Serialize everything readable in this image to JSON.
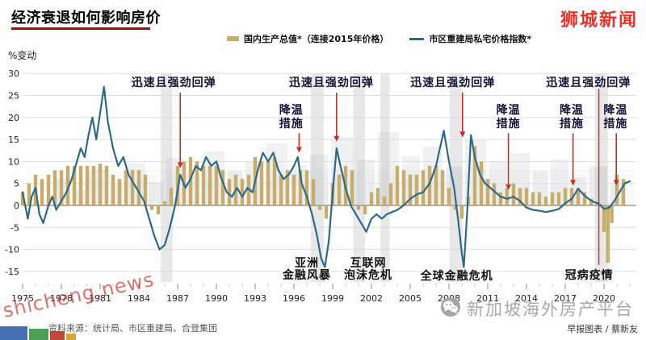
{
  "header": {
    "title": "经济衰退如何影响房价",
    "logo": "狮城新闻",
    "legend": [
      {
        "label": "国内生产总值*（连接2015年价格）",
        "swatch": "bar",
        "color": "#c8ad6a"
      },
      {
        "label": "市区重建局私宅价格指数*",
        "swatch": "line",
        "color": "#2e6988"
      }
    ]
  },
  "chart_data": {
    "type": "combo",
    "title": "经济衰退如何影响房价",
    "ylabel": "%变动",
    "ylim": [
      -15,
      30
    ],
    "yticks": [
      30,
      25,
      20,
      15,
      10,
      5,
      0,
      -5,
      -10,
      -15
    ],
    "xticks": [
      1975,
      1978,
      1981,
      1984,
      1987,
      1990,
      1993,
      1996,
      1999,
      2002,
      2005,
      2008,
      2011,
      2014,
      2017,
      2020
    ],
    "xlim": [
      1975,
      2022.5
    ],
    "grid": true,
    "legend_position": "top",
    "series": [
      {
        "name": "国内生产总值*（连接2015年价格）",
        "type": "bar",
        "color": "#c8ad6a",
        "points": [
          [
            1975,
            3
          ],
          [
            1975.5,
            5
          ],
          [
            1976,
            7
          ],
          [
            1976.5,
            6
          ],
          [
            1977,
            7
          ],
          [
            1977.5,
            8
          ],
          [
            1978,
            8
          ],
          [
            1978.5,
            9
          ],
          [
            1979,
            9
          ],
          [
            1979.5,
            9
          ],
          [
            1980,
            9
          ],
          [
            1980.5,
            9
          ],
          [
            1981,
            9.5
          ],
          [
            1981.5,
            9
          ],
          [
            1982,
            7
          ],
          [
            1982.5,
            6
          ],
          [
            1983,
            8
          ],
          [
            1983.5,
            8
          ],
          [
            1984,
            8
          ],
          [
            1984.5,
            7
          ],
          [
            1985,
            -1
          ],
          [
            1985.5,
            -2
          ],
          [
            1986,
            1
          ],
          [
            1986.5,
            4
          ],
          [
            1987,
            9
          ],
          [
            1987.5,
            10
          ],
          [
            1988,
            11
          ],
          [
            1988.5,
            10
          ],
          [
            1989,
            9
          ],
          [
            1989.5,
            9
          ],
          [
            1990,
            9
          ],
          [
            1990.5,
            8
          ],
          [
            1991,
            6
          ],
          [
            1991.5,
            7
          ],
          [
            1992,
            6
          ],
          [
            1992.5,
            7
          ],
          [
            1993,
            11
          ],
          [
            1993.5,
            10
          ],
          [
            1994,
            10
          ],
          [
            1994.5,
            11
          ],
          [
            1995,
            7
          ],
          [
            1995.5,
            8
          ],
          [
            1996,
            7
          ],
          [
            1996.5,
            8
          ],
          [
            1997,
            8
          ],
          [
            1997.5,
            6
          ],
          [
            1998,
            -1
          ],
          [
            1998.5,
            -3
          ],
          [
            1999,
            5
          ],
          [
            1999.5,
            7
          ],
          [
            2000,
            9
          ],
          [
            2000.5,
            8
          ],
          [
            2001,
            -1
          ],
          [
            2001.5,
            -2
          ],
          [
            2002,
            3
          ],
          [
            2002.5,
            4
          ],
          [
            2003,
            2
          ],
          [
            2003.5,
            5
          ],
          [
            2004,
            9
          ],
          [
            2004.5,
            8
          ],
          [
            2005,
            7
          ],
          [
            2005.5,
            7
          ],
          [
            2006,
            8
          ],
          [
            2006.5,
            9
          ],
          [
            2007,
            9
          ],
          [
            2007.5,
            8
          ],
          [
            2008,
            4
          ],
          [
            2008.5,
            -1
          ],
          [
            2009,
            -3
          ],
          [
            2009.5,
            2
          ],
          [
            2010,
            13.5
          ],
          [
            2010.5,
            10
          ],
          [
            2011,
            6
          ],
          [
            2011.5,
            5
          ],
          [
            2012,
            3
          ],
          [
            2012.5,
            4
          ],
          [
            2013,
            5
          ],
          [
            2013.5,
            4
          ],
          [
            2014,
            4
          ],
          [
            2014.5,
            3
          ],
          [
            2015,
            3
          ],
          [
            2015.5,
            2
          ],
          [
            2016,
            3
          ],
          [
            2016.5,
            3
          ],
          [
            2017,
            4
          ],
          [
            2017.5,
            4
          ],
          [
            2018,
            4
          ],
          [
            2018.5,
            3
          ],
          [
            2019,
            1.5
          ],
          [
            2019.5,
            0.8
          ],
          [
            2020,
            -6
          ],
          [
            2020.3,
            -13
          ],
          [
            2020.6,
            -4
          ],
          [
            2021,
            7
          ],
          [
            2021.5,
            6
          ]
        ]
      },
      {
        "name": "市区重建局私宅价格指数*",
        "type": "line",
        "color": "#2e6988",
        "points": [
          [
            1975,
            3
          ],
          [
            1975.2,
            0
          ],
          [
            1975.4,
            -3
          ],
          [
            1975.7,
            2
          ],
          [
            1976,
            4
          ],
          [
            1976.3,
            -2
          ],
          [
            1976.6,
            -4
          ],
          [
            1977,
            0
          ],
          [
            1977.3,
            2
          ],
          [
            1977.6,
            -1
          ],
          [
            1978,
            1
          ],
          [
            1978.4,
            3
          ],
          [
            1978.8,
            6
          ],
          [
            1979.2,
            10
          ],
          [
            1979.5,
            13
          ],
          [
            1979.8,
            11
          ],
          [
            1980.1,
            16
          ],
          [
            1980.4,
            20
          ],
          [
            1980.7,
            15
          ],
          [
            1981,
            21
          ],
          [
            1981.3,
            27
          ],
          [
            1981.6,
            19
          ],
          [
            1982,
            13
          ],
          [
            1982.4,
            9
          ],
          [
            1982.8,
            11
          ],
          [
            1983.2,
            7
          ],
          [
            1983.6,
            5
          ],
          [
            1984,
            3
          ],
          [
            1984.4,
            1
          ],
          [
            1984.8,
            -3
          ],
          [
            1985.2,
            -7
          ],
          [
            1985.6,
            -10
          ],
          [
            1986,
            -9
          ],
          [
            1986.4,
            -5
          ],
          [
            1986.8,
            0
          ],
          [
            1987.2,
            7
          ],
          [
            1987.6,
            4
          ],
          [
            1988,
            6
          ],
          [
            1988.4,
            9
          ],
          [
            1988.8,
            8
          ],
          [
            1989.2,
            11
          ],
          [
            1989.6,
            9
          ],
          [
            1990,
            10
          ],
          [
            1990.4,
            6
          ],
          [
            1990.8,
            3
          ],
          [
            1991.2,
            2
          ],
          [
            1991.6,
            4
          ],
          [
            1992,
            2
          ],
          [
            1992.4,
            4
          ],
          [
            1992.8,
            3
          ],
          [
            1993.2,
            8
          ],
          [
            1993.6,
            12
          ],
          [
            1994,
            10
          ],
          [
            1994.4,
            12
          ],
          [
            1994.8,
            8
          ],
          [
            1995.2,
            6
          ],
          [
            1995.6,
            7
          ],
          [
            1996,
            9
          ],
          [
            1996.3,
            11
          ],
          [
            1996.6,
            5
          ],
          [
            1997,
            2
          ],
          [
            1997.4,
            -2
          ],
          [
            1997.8,
            -7
          ],
          [
            1998.1,
            -12
          ],
          [
            1998.4,
            -14
          ],
          [
            1998.7,
            -8
          ],
          [
            1999,
            3
          ],
          [
            1999.3,
            13
          ],
          [
            1999.6,
            9
          ],
          [
            2000,
            4
          ],
          [
            2000.4,
            0
          ],
          [
            2000.8,
            -2
          ],
          [
            2001.2,
            -4
          ],
          [
            2001.6,
            -6
          ],
          [
            2002,
            -3
          ],
          [
            2002.4,
            -2
          ],
          [
            2002.8,
            -3
          ],
          [
            2003.2,
            -2
          ],
          [
            2003.6,
            -1.5
          ],
          [
            2004,
            -1
          ],
          [
            2004.5,
            0
          ],
          [
            2005,
            1.5
          ],
          [
            2005.5,
            2.5
          ],
          [
            2006,
            3
          ],
          [
            2006.5,
            5
          ],
          [
            2007,
            9
          ],
          [
            2007.3,
            13
          ],
          [
            2007.6,
            17
          ],
          [
            2008,
            10
          ],
          [
            2008.4,
            4
          ],
          [
            2008.7,
            -3
          ],
          [
            2009,
            -11
          ],
          [
            2009.15,
            -14
          ],
          [
            2009.4,
            -2
          ],
          [
            2009.7,
            16
          ],
          [
            2010,
            11
          ],
          [
            2010.4,
            7
          ],
          [
            2010.8,
            5
          ],
          [
            2011.2,
            4
          ],
          [
            2011.6,
            3
          ],
          [
            2012,
            2
          ],
          [
            2012.5,
            1.5
          ],
          [
            2013,
            2
          ],
          [
            2013.5,
            1
          ],
          [
            2014,
            -0.5
          ],
          [
            2014.5,
            -1
          ],
          [
            2015,
            -1.2
          ],
          [
            2015.5,
            -1.5
          ],
          [
            2016,
            -1.2
          ],
          [
            2016.5,
            -0.8
          ],
          [
            2017,
            0.5
          ],
          [
            2017.5,
            1.5
          ],
          [
            2018,
            3.8
          ],
          [
            2018.4,
            2.5
          ],
          [
            2018.8,
            1.5
          ],
          [
            2019.2,
            0.8
          ],
          [
            2019.6,
            0.4
          ],
          [
            2020,
            -0.8
          ],
          [
            2020.4,
            -0.5
          ],
          [
            2020.8,
            1
          ],
          [
            2021.2,
            3
          ],
          [
            2021.6,
            5
          ],
          [
            2022,
            5.5
          ]
        ]
      }
    ],
    "recession_bands": [
      [
        1985.7,
        1986.6
      ],
      [
        1997.3,
        1998.3
      ],
      [
        2000.6,
        2001.5
      ],
      [
        2002.7,
        2003.4
      ],
      [
        2008.05,
        2009.05
      ],
      [
        2019.3,
        2020.3
      ]
    ],
    "covid_line": {
      "year": 2019.6,
      "from": 26.5,
      "to": -13.5,
      "color": "#c43026"
    },
    "annotations": [
      {
        "text": "迅速且强劲回弹",
        "year": 1986.7,
        "top_value": 29.3,
        "arrow": {
          "year": 1987.2,
          "to": 8.5
        }
      },
      {
        "text": "降温\n措施",
        "year": 1995.8,
        "top_value": 23.0,
        "arrow": {
          "year": 1996.4,
          "to": 12
        }
      },
      {
        "text": "迅速且强劲回弹",
        "year": 1998.9,
        "top_value": 29.3,
        "arrow": {
          "year": 1999.3,
          "to": 14.5
        }
      },
      {
        "text": "迅速且强劲回弹",
        "year": 2008.3,
        "top_value": 29.3,
        "arrow": {
          "year": 2009.05,
          "to": 15.5
        }
      },
      {
        "text": "降温\n措施",
        "year": 2012.6,
        "top_value": 23.0,
        "arrow": {
          "year": 2012.6,
          "to": 3.5
        }
      },
      {
        "text": "降温\n措施",
        "year": 2017.5,
        "top_value": 23.0,
        "arrow": {
          "year": 2017.6,
          "to": 4.5
        }
      },
      {
        "text": "迅速且强劲回弹",
        "year": 2018.8,
        "top_value": 29.3,
        "arrow": null
      },
      {
        "text": "降温\n措施",
        "year": 2020.9,
        "top_value": 23.0,
        "arrow": {
          "year": 2020.95,
          "to": 4.5
        }
      }
    ],
    "event_labels": [
      {
        "text": "亚洲\n金融风暴",
        "year": 1997.0,
        "top_value": -11.9
      },
      {
        "text": "互联网\n泡沫危机",
        "year": 2001.75,
        "top_value": -11.9
      },
      {
        "text": "全球金融危机",
        "year": 2008.6,
        "top_value": -14.9
      },
      {
        "text": "冠病疫情",
        "year": 2018.85,
        "top_value": -14.6
      }
    ],
    "accent_colors": {
      "arrow_red": "#c43026",
      "grid": "#dddddd",
      "zero_line": "#999999",
      "band": "#e2e2e2"
    }
  },
  "footer": {
    "source": "资料来源：统计局、市区重建局、合登集团",
    "credit": "早报图表 / 蔡新友",
    "watermark_diagonal": "shicheng.news",
    "watermark_center": "新加坡海外房产平台"
  }
}
